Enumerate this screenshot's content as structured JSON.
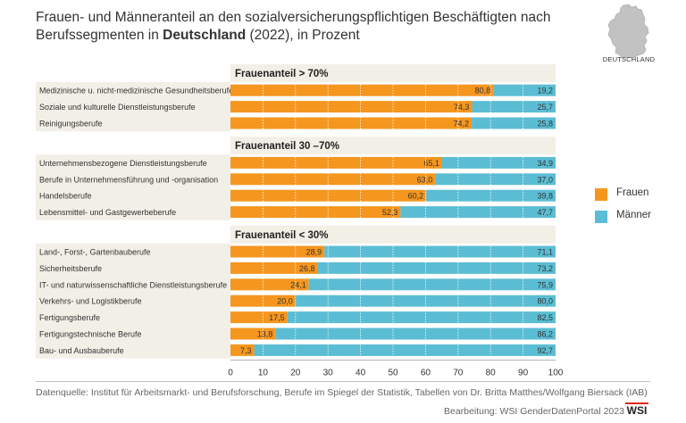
{
  "header": {
    "title_part1": "Frauen- und Männeranteil an den sozialversicherungspflichtigen Beschäftigten nach Berufssegmenten in ",
    "title_bold": "Deutschland",
    "title_part2": " (2022), in Prozent"
  },
  "map": {
    "label": "DEUTSCHLAND",
    "icon": "germany-map-icon"
  },
  "footer": {
    "source": "Datenquelle: Institut für Arbeitsmarkt- und Berufsforschung, Berufe im Spiegel der Statistik, Tabellen von Dr. Britta Matthes/Wolfgang Biersack (IAB)",
    "credit": "Bearbeitung: WSI GenderDatenPortal 2023",
    "logo": "WSI"
  },
  "colors": {
    "frauen": "#f5961f",
    "maenner": "#5bbdd3",
    "label_bg": "#f1efe6",
    "grid": "#ffffff"
  },
  "chart_data": {
    "type": "bar",
    "orientation": "horizontal",
    "stacked": true,
    "xlim": [
      0,
      100
    ],
    "xticks": [
      "0",
      "10",
      "20",
      "30",
      "40",
      "50",
      "60",
      "70",
      "80",
      "90",
      "100"
    ],
    "legend": {
      "placement": "right",
      "entries": [
        "Frauen",
        "Männer"
      ]
    },
    "groups": [
      {
        "title": "Frauenanteil > 70%",
        "rows": [
          {
            "category": "Medizinische u. nicht-medizinische Gesundheitsberufe",
            "frauen": 80.8,
            "maenner": 19.2,
            "frauen_label": "80,8",
            "maenner_label": "19,2"
          },
          {
            "category": "Soziale und kulturelle Dienstleistungsberufe",
            "frauen": 74.3,
            "maenner": 25.7,
            "frauen_label": "74,3",
            "maenner_label": "25,7"
          },
          {
            "category": "Reinigungsberufe",
            "frauen": 74.2,
            "maenner": 25.8,
            "frauen_label": "74,2",
            "maenner_label": "25,8"
          }
        ]
      },
      {
        "title": "Frauenanteil 30 –70%",
        "rows": [
          {
            "category": "Unternehmensbezogene Dienstleistungsberufe",
            "frauen": 65.1,
            "maenner": 34.9,
            "frauen_label": "65,1",
            "maenner_label": "34,9"
          },
          {
            "category": "Berufe in Unternehmensführung und -organisation",
            "frauen": 63.0,
            "maenner": 37.0,
            "frauen_label": "63,0",
            "maenner_label": "37,0"
          },
          {
            "category": "Handelsberufe",
            "frauen": 60.2,
            "maenner": 39.8,
            "frauen_label": "60,2",
            "maenner_label": "39,8"
          },
          {
            "category": "Lebensmittel- und Gastgewerbeberufe",
            "frauen": 52.3,
            "maenner": 47.7,
            "frauen_label": "52,3",
            "maenner_label": "47,7"
          }
        ]
      },
      {
        "title": "Frauenanteil < 30%",
        "rows": [
          {
            "category": "Land-, Forst-, Gartenbauberufe",
            "frauen": 28.9,
            "maenner": 71.1,
            "frauen_label": "28,9",
            "maenner_label": "71,1"
          },
          {
            "category": "Sicherheitsberufe",
            "frauen": 26.8,
            "maenner": 73.2,
            "frauen_label": "26,8",
            "maenner_label": "73,2"
          },
          {
            "category": "IT- und naturwissenschaftliche Dienstleistungsberufe",
            "frauen": 24.1,
            "maenner": 75.9,
            "frauen_label": "24,1",
            "maenner_label": "75,9"
          },
          {
            "category": "Verkehrs- und Logistikberufe",
            "frauen": 20.0,
            "maenner": 80.0,
            "frauen_label": "20,0",
            "maenner_label": "80,0"
          },
          {
            "category": "Fertigungsberufe",
            "frauen": 17.5,
            "maenner": 82.5,
            "frauen_label": "17,5",
            "maenner_label": "82,5"
          },
          {
            "category": "Fertigungstechnische Berufe",
            "frauen": 13.8,
            "maenner": 86.2,
            "frauen_label": "13,8",
            "maenner_label": "86,2"
          },
          {
            "category": "Bau- und Ausbauberufe",
            "frauen": 7.3,
            "maenner": 92.7,
            "frauen_label": "7,3",
            "maenner_label": "92,7"
          }
        ]
      }
    ]
  }
}
